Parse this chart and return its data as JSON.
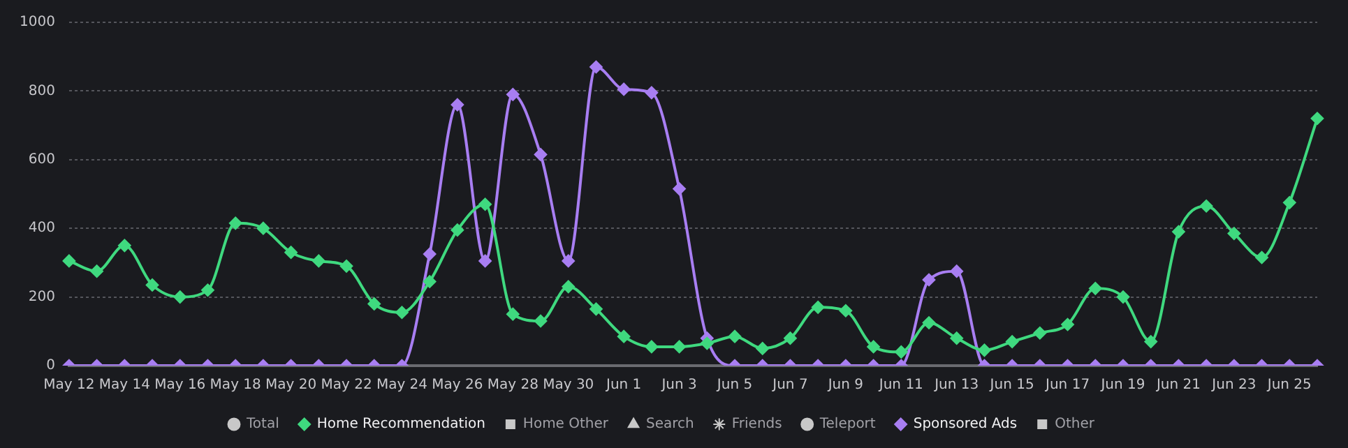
{
  "chart_data": {
    "type": "line",
    "categories": [
      "May 12",
      null,
      "May 14",
      null,
      "May 16",
      null,
      "May 18",
      null,
      "May 20",
      null,
      "May 22",
      null,
      "May 24",
      null,
      "May 26",
      null,
      "May 28",
      null,
      "May 30",
      null,
      "Jun 1",
      null,
      "Jun 3",
      null,
      "Jun 5",
      null,
      "Jun 7",
      null,
      "Jun 9",
      null,
      "Jun 11",
      null,
      "Jun 13",
      null,
      "Jun 15",
      null,
      "Jun 17",
      null,
      "Jun 19",
      null,
      "Jun 21",
      null,
      "Jun 23",
      null,
      "Jun 25",
      null
    ],
    "ylim": [
      0,
      1000
    ],
    "yticks": [
      0,
      200,
      400,
      600,
      800,
      1000
    ],
    "grid": "y",
    "legend": "bottom",
    "line_style": "solid",
    "series": [
      {
        "name": "Total",
        "color": "#c8c8c8",
        "marker": "circle",
        "values": [
          null,
          null,
          null,
          null,
          null,
          null,
          null,
          null,
          null,
          null,
          null,
          null,
          null,
          null,
          null,
          null,
          null,
          null,
          null,
          null,
          null,
          null,
          null,
          null,
          null,
          null,
          null,
          null,
          null,
          null,
          null,
          null,
          null,
          null,
          null,
          null,
          null,
          null,
          null,
          null,
          null,
          null,
          null,
          null,
          null,
          null
        ]
      },
      {
        "name": "Home Recommendation",
        "color": "#3fd97f",
        "marker": "diamond",
        "values": [
          305,
          275,
          350,
          235,
          200,
          220,
          415,
          400,
          330,
          305,
          290,
          180,
          155,
          245,
          395,
          470,
          150,
          130,
          230,
          165,
          85,
          55,
          55,
          65,
          85,
          50,
          80,
          170,
          160,
          55,
          40,
          125,
          80,
          45,
          70,
          95,
          120,
          225,
          200,
          70,
          390,
          465,
          385,
          315,
          475,
          720
        ]
      },
      {
        "name": "Home Other",
        "color": "#c8c8c8",
        "marker": "square",
        "values": [
          null,
          null,
          null,
          null,
          null,
          null,
          null,
          null,
          null,
          null,
          null,
          null,
          null,
          null,
          null,
          null,
          null,
          null,
          null,
          null,
          null,
          null,
          null,
          null,
          null,
          null,
          null,
          null,
          null,
          null,
          null,
          null,
          null,
          null,
          null,
          null,
          null,
          null,
          null,
          null,
          null,
          null,
          null,
          null,
          null,
          null
        ]
      },
      {
        "name": "Search",
        "color": "#c8c8c8",
        "marker": "triangle",
        "values": [
          null,
          null,
          null,
          null,
          null,
          null,
          null,
          null,
          null,
          null,
          null,
          null,
          null,
          null,
          null,
          null,
          null,
          null,
          null,
          null,
          null,
          null,
          null,
          null,
          null,
          null,
          null,
          null,
          null,
          null,
          null,
          null,
          null,
          null,
          null,
          null,
          null,
          null,
          null,
          null,
          null,
          null,
          null,
          null,
          null,
          null
        ]
      },
      {
        "name": "Friends",
        "color": "#c8c8c8",
        "marker": "star",
        "values": [
          null,
          null,
          null,
          null,
          null,
          null,
          null,
          null,
          null,
          null,
          null,
          null,
          null,
          null,
          null,
          null,
          null,
          null,
          null,
          null,
          null,
          null,
          null,
          null,
          null,
          null,
          null,
          null,
          null,
          null,
          null,
          null,
          null,
          null,
          null,
          null,
          null,
          null,
          null,
          null,
          null,
          null,
          null,
          null,
          null,
          null
        ]
      },
      {
        "name": "Teleport",
        "color": "#c8c8c8",
        "marker": "circle",
        "values": [
          null,
          null,
          null,
          null,
          null,
          null,
          null,
          null,
          null,
          null,
          null,
          null,
          null,
          null,
          null,
          null,
          null,
          null,
          null,
          null,
          null,
          null,
          null,
          null,
          null,
          null,
          null,
          null,
          null,
          null,
          null,
          null,
          null,
          null,
          null,
          null,
          null,
          null,
          null,
          null,
          null,
          null,
          null,
          null,
          null,
          null
        ]
      },
      {
        "name": "Sponsored Ads",
        "color": "#a87ef2",
        "marker": "diamond",
        "values": [
          0,
          0,
          0,
          0,
          0,
          0,
          0,
          0,
          0,
          0,
          0,
          0,
          0,
          325,
          760,
          305,
          790,
          615,
          305,
          870,
          805,
          795,
          515,
          80,
          0,
          0,
          0,
          0,
          0,
          0,
          0,
          250,
          275,
          0,
          0,
          0,
          0,
          0,
          0,
          0,
          0,
          0,
          0,
          0,
          0,
          0
        ]
      },
      {
        "name": "Other",
        "color": "#c8c8c8",
        "marker": "square",
        "values": [
          null,
          null,
          null,
          null,
          null,
          null,
          null,
          null,
          null,
          null,
          null,
          null,
          null,
          null,
          null,
          null,
          null,
          null,
          null,
          null,
          null,
          null,
          null,
          null,
          null,
          null,
          null,
          null,
          null,
          null,
          null,
          null,
          null,
          null,
          null,
          null,
          null,
          null,
          null,
          null,
          null,
          null,
          null,
          null,
          null,
          null
        ]
      }
    ]
  }
}
